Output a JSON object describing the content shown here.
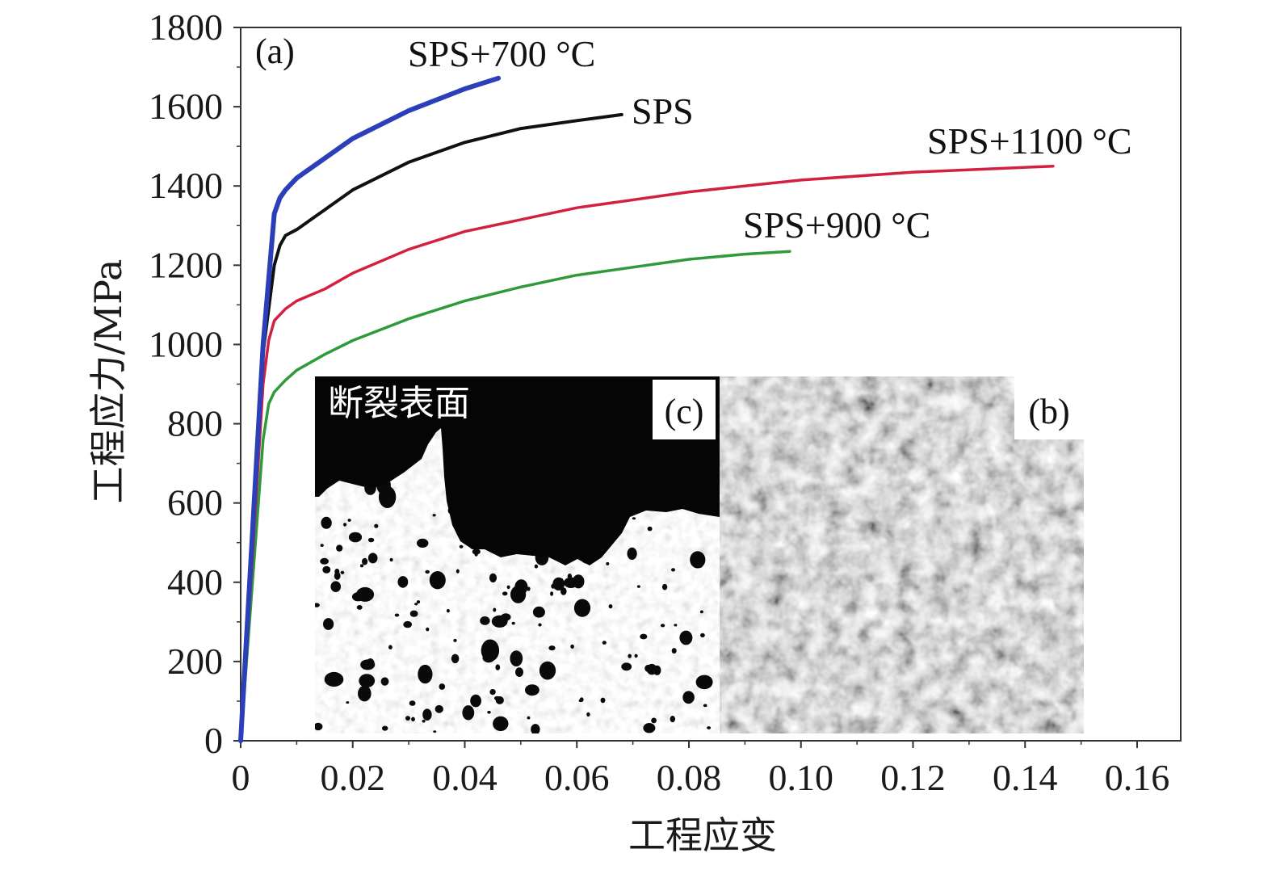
{
  "chart_data": {
    "type": "line",
    "panel_label": "(a)",
    "title": "",
    "xlabel": "工程应变",
    "ylabel": "工程应力/MPa",
    "xlim": [
      0,
      0.165
    ],
    "ylim": [
      0,
      1800
    ],
    "xticks": [
      "0",
      "0.02",
      "0.04",
      "0.06",
      "0.08",
      "0.10",
      "0.12",
      "0.14",
      "0.16"
    ],
    "xtick_values": [
      0,
      0.02,
      0.04,
      0.06,
      0.08,
      0.1,
      0.12,
      0.14,
      0.16
    ],
    "yticks": [
      "0",
      "200",
      "400",
      "600",
      "800",
      "1000",
      "1200",
      "1400",
      "1600",
      "1800"
    ],
    "ytick_values": [
      0,
      200,
      400,
      600,
      800,
      1000,
      1200,
      1400,
      1600,
      1800
    ],
    "grid": false,
    "legend": "none (series labelled at curve ends)",
    "series": [
      {
        "name": "SPS+700 °C",
        "color": "#2b3fb8",
        "x": [
          0,
          0.002,
          0.004,
          0.006,
          0.007,
          0.008,
          0.01,
          0.015,
          0.02,
          0.03,
          0.04,
          0.046
        ],
        "y": [
          0,
          500,
          1000,
          1330,
          1370,
          1390,
          1420,
          1470,
          1520,
          1590,
          1645,
          1672
        ]
      },
      {
        "name": "SPS",
        "color": "#111111",
        "x": [
          0,
          0.002,
          0.004,
          0.006,
          0.007,
          0.008,
          0.01,
          0.015,
          0.02,
          0.03,
          0.04,
          0.05,
          0.06,
          0.068
        ],
        "y": [
          0,
          480,
          980,
          1200,
          1250,
          1275,
          1290,
          1340,
          1390,
          1460,
          1510,
          1545,
          1565,
          1580
        ]
      },
      {
        "name": "SPS+1100 °C",
        "color": "#d42040",
        "x": [
          0,
          0.002,
          0.004,
          0.005,
          0.006,
          0.008,
          0.01,
          0.015,
          0.02,
          0.03,
          0.04,
          0.06,
          0.08,
          0.1,
          0.12,
          0.145
        ],
        "y": [
          0,
          440,
          900,
          1010,
          1060,
          1090,
          1110,
          1140,
          1180,
          1240,
          1285,
          1345,
          1385,
          1415,
          1435,
          1450
        ]
      },
      {
        "name": "SPS+900 °C",
        "color": "#2e9a3a",
        "x": [
          0,
          0.002,
          0.004,
          0.005,
          0.006,
          0.008,
          0.01,
          0.015,
          0.02,
          0.03,
          0.04,
          0.05,
          0.06,
          0.07,
          0.08,
          0.09,
          0.098
        ],
        "y": [
          0,
          380,
          760,
          850,
          880,
          910,
          935,
          975,
          1010,
          1065,
          1110,
          1145,
          1175,
          1195,
          1215,
          1228,
          1235
        ]
      }
    ],
    "insets": [
      {
        "label": "(c)",
        "title": "断裂表面"
      },
      {
        "label": "(b)",
        "title": ""
      }
    ]
  }
}
